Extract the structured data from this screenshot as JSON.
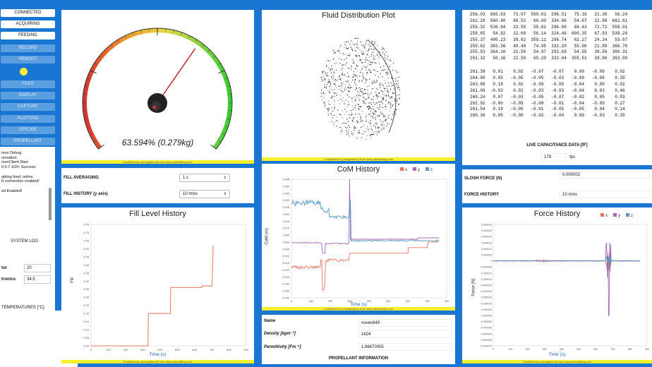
{
  "sidebar": {
    "buttons": [
      {
        "label": "CONNECTED",
        "active": true
      },
      {
        "label": "ACQUIRING",
        "active": true
      },
      {
        "label": "FEEDING",
        "active": true
      },
      {
        "label": "RECORD",
        "active": false
      },
      {
        "label": "REBOOT",
        "active": false
      },
      {
        "label": "FILES",
        "active": false
      },
      {
        "label": "DISPLAY",
        "active": false
      },
      {
        "label": "CAPTURE",
        "active": false
      },
      {
        "label": "PLOTTING",
        "active": false
      },
      {
        "label": "OFFLINE",
        "active": false
      },
      {
        "label": "PROPELLANT",
        "active": false
      }
    ],
    "status_led_color": "#ffeb3b",
    "log_lines": [
      "nsor Debug",
      "ormation:",
      "nsorClient:Start",
      "0.0.7.103< Success",
      "",
      "abling feed, online",
      "ft connection enabled!",
      "",
      "ed Enabled!"
    ],
    "system_log_label": "SYSTEM LOG",
    "temps": [
      {
        "label": "tor",
        "value": "20"
      },
      {
        "label": "tronics",
        "value": "34.5"
      }
    ],
    "temperatures_label": "TEMPERATURES [°C]"
  },
  "gauge": {
    "readout": "63.594% (0.279kg)",
    "percent": 63.594,
    "credit": "ChartDirector (unregistered) from www.advsofteng.com"
  },
  "fluid_plot": {
    "title": "Fluid Distribution Plot",
    "credit": "ChartDirector (unregistered) from www.advsofteng.com"
  },
  "fill_controls": {
    "averaging_label": "FILL AVERAGING",
    "averaging_value": "1 s",
    "history_label": "FILL HISTORY (y axis)",
    "history_value": "10 mins"
  },
  "fill_chart": {
    "title": "Fill Level History",
    "xlabel": "Time (s)",
    "ylabel": "Fill",
    "credit": "ChartDirector (unregistered) from www.advsofteng.com"
  },
  "com_chart": {
    "title": "CoM History",
    "legend": [
      "x",
      "y",
      "z"
    ],
    "xlabel": "Time (s)",
    "ylabel": "CoM (m)",
    "credit": "ChartDirector (unregistered) from www.advsofteng.com"
  },
  "propellant": {
    "rows": [
      {
        "label": "Name",
        "value": "novec649"
      },
      {
        "label": "Density [kgm⁻³]",
        "value": "1624"
      },
      {
        "label": "Permittivity [Fm⁻¹]",
        "value": "1.86670005"
      }
    ],
    "footer": "PROPELLANT INFORMATION"
  },
  "cap_data": {
    "block1": [
      "256.03  665.63   73.07  599.01  296.51   75.16   21.30   56.24",
      "262.26  560.40   68.52   66.00  334.86   54.67   22.88  662.61",
      "259.32  536.04   23.59   55.61  296.99   66.43   72.72  558.01",
      "258.65   54.92   22.00   56.14  324.46  600.35   67.93  539.20",
      "255.37  400.23   39.02  359.11  296.74   62.27   24.34   53.67",
      "259.62  383.56   40.40   74.95  332.20   55.00   21.99  366.76",
      "255.53  364.10   22.50   54.97  293.69   54.55   38.56  380.31",
      "261.32   56.16   22.59   65.20  322.04  355.51   39.96  363.99"
    ],
    "block2": [
      "261.38   0.01    0.02   -0.07   -0.07    0.00   -0.09    0.02",
      "264.90   0.05   -0.05   -0.05   -0.03   -0.09   -0.06    0.35",
      "263.88   0.18    0.02   -0.09   -0.05   -0.04    0.00    0.02",
      "261.09  -0.03    0.02   -0.03   -0.03   -0.04    0.03    0.46",
      "260.24   0.07   -0.03   -0.05   -0.07   -0.02    0.05    0.03",
      "262.92  -0.00   -0.05   -0.08   -0.01   -0.04   -0.00    0.27",
      "261.54   0.19   -0.05   -0.01   -0.05   -0.05    0.04    0.14",
      "260.36   0.05   -0.00   -0.02   -0.04    0.00   -0.03    0.35"
    ],
    "label": "LIVE CAPACITANCE DATA [fF]",
    "fps_value": "179",
    "fps_unit": "fps"
  },
  "slosh": {
    "force_label": "SLOSH FORCE (N)",
    "force_value": "0.000002",
    "history_label": "FORCE HISTORY",
    "history_value": "10 mins"
  },
  "force_chart": {
    "title": "Force History",
    "legend": [
      "x",
      "y",
      "z"
    ],
    "xlabel": "Time (s)",
    "ylabel": "Force (N)",
    "credit": "ChartDirector (unregistered) from www.advsofteng.com"
  },
  "colors": {
    "x": "#e8735a",
    "y": "#a06ab4",
    "z": "#5b9ac8",
    "accent": "#1976d2",
    "credit_bar": "#f7ef29"
  }
}
